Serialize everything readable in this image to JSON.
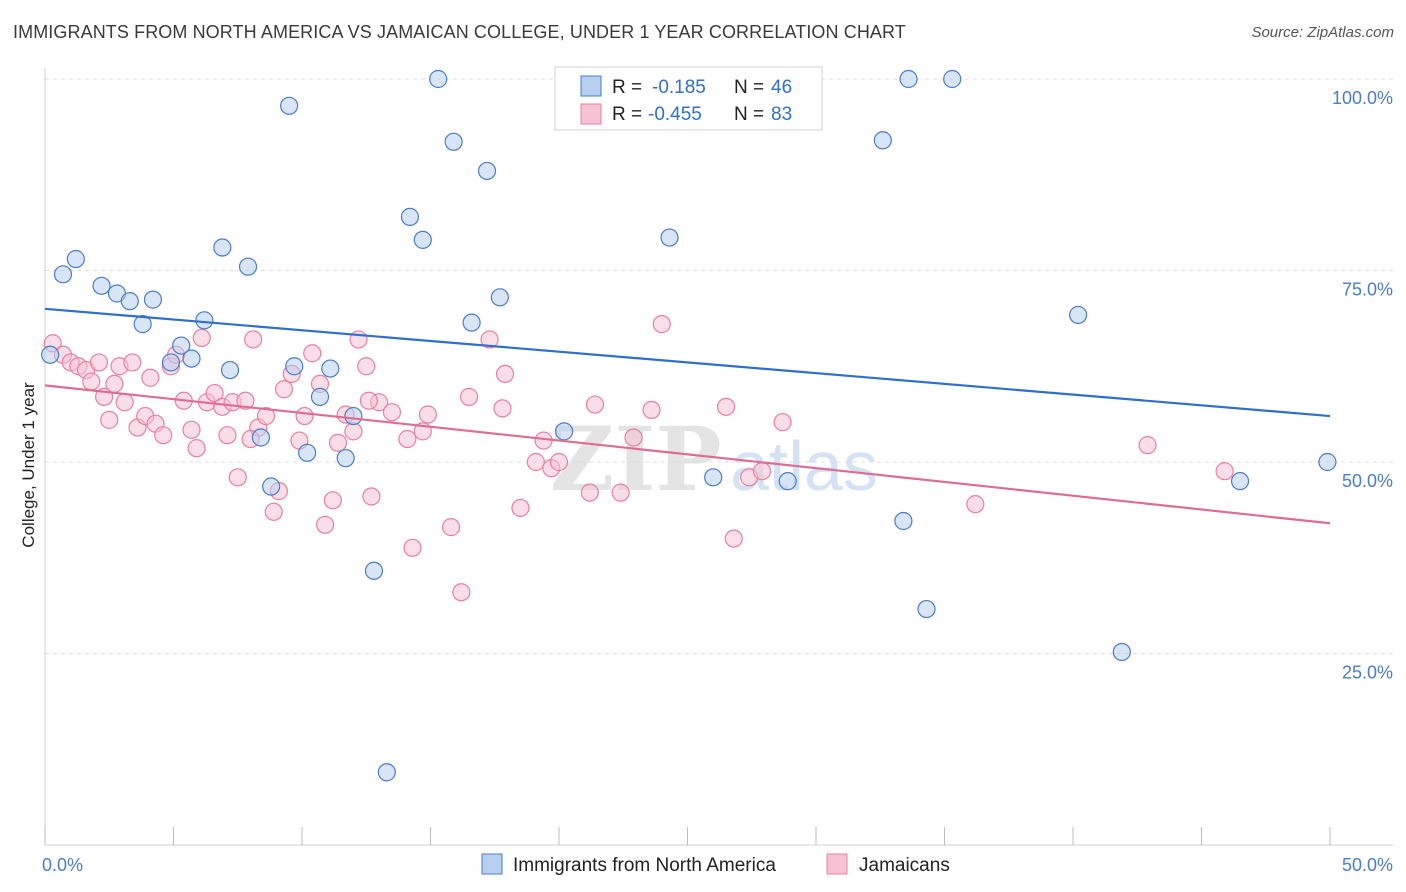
{
  "title": "IMMIGRANTS FROM NORTH AMERICA VS JAMAICAN COLLEGE, UNDER 1 YEAR CORRELATION CHART",
  "source": "Source: ZipAtlas.com",
  "colors": {
    "blue": "#4a7cc7",
    "blue_fill": "#b8d0f0",
    "blue_line": "#2f6fce",
    "pink": "#e87fa0",
    "pink_fill": "#f6c3d3",
    "pink_line": "#e06b92",
    "grid": "#dcdcdc"
  },
  "legend": {
    "rows": [
      {
        "r_label": "R =",
        "r_value": "-0.185",
        "n_label": "N =",
        "n_value": "46"
      },
      {
        "r_label": "R =",
        "r_value": "-0.455",
        "n_label": "N =",
        "n_value": "83"
      }
    ]
  },
  "bottom_legend": [
    "Immigrants from North America",
    "Jamaicans"
  ],
  "watermark": {
    "zip": "ZIP",
    "atlas": "atlas"
  },
  "chart_data": {
    "type": "scatter",
    "xlabel": "",
    "ylabel": "College, Under 1 year",
    "xlim": [
      0,
      50
    ],
    "ylim": [
      0,
      100
    ],
    "x_tick_labels": [
      "0.0%",
      "50.0%"
    ],
    "y_tick_labels": [
      "100.0%",
      "75.0%",
      "50.0%",
      "25.0%"
    ],
    "y_ticks": [
      100,
      75,
      50,
      25
    ],
    "grid": true,
    "legend_position": "top-center",
    "series": [
      {
        "name": "Immigrants from North America",
        "trend": {
          "x0": 0,
          "y0": 70.0,
          "x1": 50,
          "y1": 56.0
        },
        "points": [
          [
            0.2,
            64.0
          ],
          [
            0.7,
            74.5
          ],
          [
            1.2,
            76.5
          ],
          [
            2.2,
            73.0
          ],
          [
            2.8,
            72.0
          ],
          [
            3.3,
            71.0
          ],
          [
            3.8,
            68.0
          ],
          [
            4.2,
            71.2
          ],
          [
            4.9,
            63.0
          ],
          [
            5.3,
            65.2
          ],
          [
            5.7,
            63.5
          ],
          [
            6.2,
            68.5
          ],
          [
            6.9,
            78.0
          ],
          [
            7.2,
            62.0
          ],
          [
            7.9,
            75.5
          ],
          [
            8.4,
            53.2
          ],
          [
            8.8,
            46.8
          ],
          [
            9.5,
            96.5
          ],
          [
            9.7,
            62.5
          ],
          [
            10.2,
            51.2
          ],
          [
            10.7,
            58.5
          ],
          [
            11.1,
            62.2
          ],
          [
            11.7,
            50.5
          ],
          [
            12.0,
            56.0
          ],
          [
            12.8,
            35.8
          ],
          [
            13.3,
            9.5
          ],
          [
            14.2,
            82.0
          ],
          [
            14.7,
            79.0
          ],
          [
            15.3,
            100.0
          ],
          [
            15.9,
            91.8
          ],
          [
            16.6,
            68.2
          ],
          [
            17.2,
            88.0
          ],
          [
            17.7,
            71.5
          ],
          [
            20.2,
            54.0
          ],
          [
            24.3,
            79.3
          ],
          [
            26.0,
            48.0
          ],
          [
            28.9,
            47.5
          ],
          [
            32.6,
            92.0
          ],
          [
            33.4,
            42.3
          ],
          [
            33.6,
            100.0
          ],
          [
            34.3,
            30.8
          ],
          [
            35.3,
            100.0
          ],
          [
            40.2,
            69.2
          ],
          [
            41.9,
            25.2
          ],
          [
            46.5,
            47.5
          ],
          [
            49.9,
            50.0
          ]
        ]
      },
      {
        "name": "Jamaicans",
        "trend": {
          "x0": 0,
          "y0": 60.0,
          "x1": 50,
          "y1": 42.0
        },
        "points": [
          [
            0.3,
            65.5
          ],
          [
            0.7,
            64.0
          ],
          [
            1.0,
            63.0
          ],
          [
            1.3,
            62.5
          ],
          [
            1.6,
            62.0
          ],
          [
            1.8,
            60.5
          ],
          [
            2.1,
            63.0
          ],
          [
            2.3,
            58.5
          ],
          [
            2.5,
            55.5
          ],
          [
            2.7,
            60.2
          ],
          [
            2.9,
            62.5
          ],
          [
            3.1,
            57.8
          ],
          [
            3.4,
            63.0
          ],
          [
            3.6,
            54.5
          ],
          [
            3.9,
            56.0
          ],
          [
            4.1,
            61.0
          ],
          [
            4.3,
            55.0
          ],
          [
            4.6,
            53.5
          ],
          [
            4.9,
            62.5
          ],
          [
            5.1,
            64.0
          ],
          [
            5.4,
            58.0
          ],
          [
            5.7,
            54.2
          ],
          [
            5.9,
            51.8
          ],
          [
            6.1,
            66.2
          ],
          [
            6.3,
            57.8
          ],
          [
            6.6,
            59.0
          ],
          [
            6.9,
            57.2
          ],
          [
            7.1,
            53.5
          ],
          [
            7.3,
            57.8
          ],
          [
            7.5,
            48.0
          ],
          [
            7.8,
            58.0
          ],
          [
            8.1,
            66.0
          ],
          [
            8.3,
            54.5
          ],
          [
            8.6,
            56.0
          ],
          [
            8.9,
            43.5
          ],
          [
            9.1,
            46.2
          ],
          [
            9.3,
            59.5
          ],
          [
            9.6,
            61.5
          ],
          [
            9.9,
            52.8
          ],
          [
            10.1,
            56.0
          ],
          [
            10.4,
            64.2
          ],
          [
            10.7,
            60.2
          ],
          [
            10.9,
            41.8
          ],
          [
            11.2,
            45.0
          ],
          [
            11.4,
            52.5
          ],
          [
            11.7,
            56.2
          ],
          [
            12.0,
            54.0
          ],
          [
            12.2,
            66.0
          ],
          [
            12.5,
            62.5
          ],
          [
            12.7,
            45.5
          ],
          [
            13.0,
            57.8
          ],
          [
            13.5,
            56.5
          ],
          [
            14.1,
            53.0
          ],
          [
            14.3,
            38.8
          ],
          [
            14.7,
            54.0
          ],
          [
            14.9,
            56.2
          ],
          [
            15.8,
            41.5
          ],
          [
            16.2,
            33.0
          ],
          [
            16.5,
            58.5
          ],
          [
            17.3,
            66.0
          ],
          [
            17.8,
            57.0
          ],
          [
            17.9,
            61.5
          ],
          [
            18.5,
            44.0
          ],
          [
            19.1,
            50.0
          ],
          [
            19.4,
            52.8
          ],
          [
            19.7,
            49.2
          ],
          [
            20.0,
            50.0
          ],
          [
            21.2,
            46.0
          ],
          [
            21.4,
            57.5
          ],
          [
            22.9,
            53.2
          ],
          [
            23.6,
            56.8
          ],
          [
            24.0,
            68.0
          ],
          [
            26.5,
            57.2
          ],
          [
            26.8,
            40.0
          ],
          [
            27.4,
            48.0
          ],
          [
            27.9,
            48.8
          ],
          [
            28.7,
            55.2
          ],
          [
            36.2,
            44.5
          ],
          [
            42.9,
            52.2
          ],
          [
            45.9,
            48.8
          ],
          [
            22.4,
            46.0
          ],
          [
            12.6,
            58.0
          ],
          [
            8.0,
            53.0
          ]
        ]
      }
    ]
  }
}
